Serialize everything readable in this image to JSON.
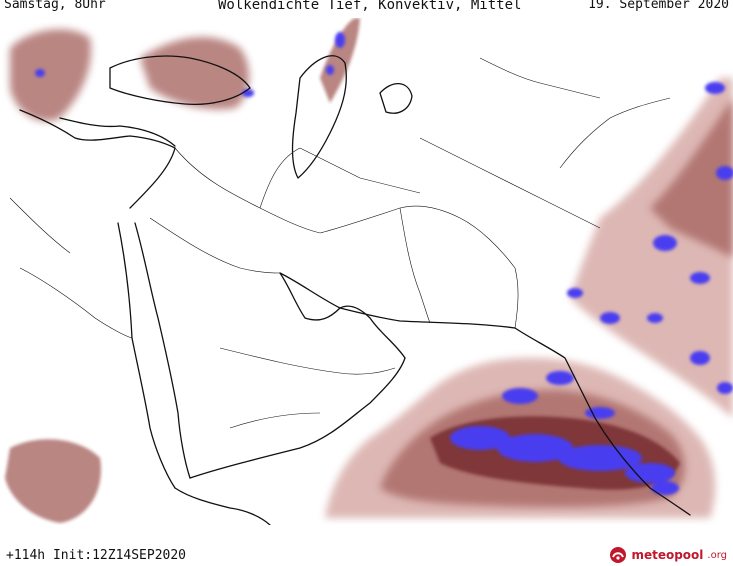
{
  "header": {
    "valid_time": "Samstag, 8Uhr",
    "title": "Wolkendichte  Tief, Konvektiv, Mittel",
    "date": "19. September 2020"
  },
  "footer": {
    "run_info": "+114h Init:12Z14SEP2020",
    "logo_name": "meteopool",
    "logo_tld": ".org"
  },
  "map": {
    "region": "Middle East / Arabian Sea",
    "colors": {
      "cloud_low": "#d2a09c",
      "cloud_mid": "#a86864",
      "cloud_dense": "#6e2426",
      "convective": "#4a3cf0",
      "coastline": "#111111",
      "background": "#ffffff"
    }
  }
}
